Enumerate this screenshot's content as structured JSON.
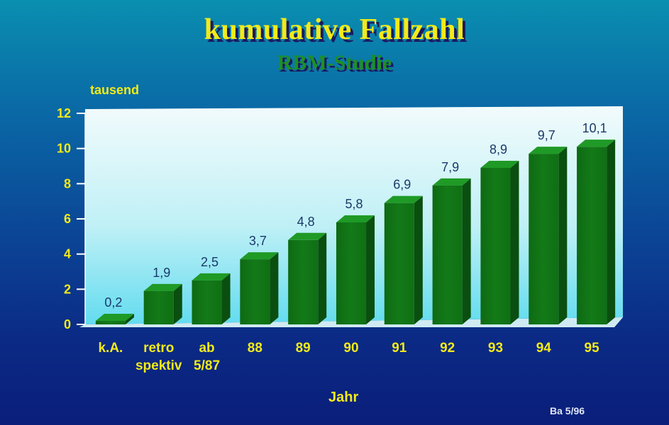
{
  "chart_data": {
    "type": "bar",
    "title": "kumulative Fallzahl",
    "subtitle": "RBM-Studie",
    "ylabel": "tausend",
    "xlabel": "Jahr",
    "categories": [
      "k.A.",
      "retro\nspektiv",
      "ab\n5/87",
      "88",
      "89",
      "90",
      "91",
      "92",
      "93",
      "94",
      "95"
    ],
    "values": [
      0.2,
      1.9,
      2.5,
      3.7,
      4.8,
      5.8,
      6.9,
      7.9,
      8.9,
      9.7,
      10.1
    ],
    "value_labels": [
      "0,2",
      "1,9",
      "2,5",
      "3,7",
      "4,8",
      "5,8",
      "6,9",
      "7,9",
      "8,9",
      "9,7",
      "10,1"
    ],
    "ylim": [
      0,
      12
    ],
    "yticks": [
      0,
      2,
      4,
      6,
      8,
      10,
      12
    ],
    "grid": false,
    "legend": "none"
  },
  "footnote": "Ba 5/96",
  "colors": {
    "bar_front": "#137a18",
    "bar_side": "#0a4f0f",
    "bar_top": "#1f9a26",
    "title_yellow": "#f2ea1a",
    "subtitle_green": "#1f8f24",
    "value_label": "#1a3a6a"
  }
}
